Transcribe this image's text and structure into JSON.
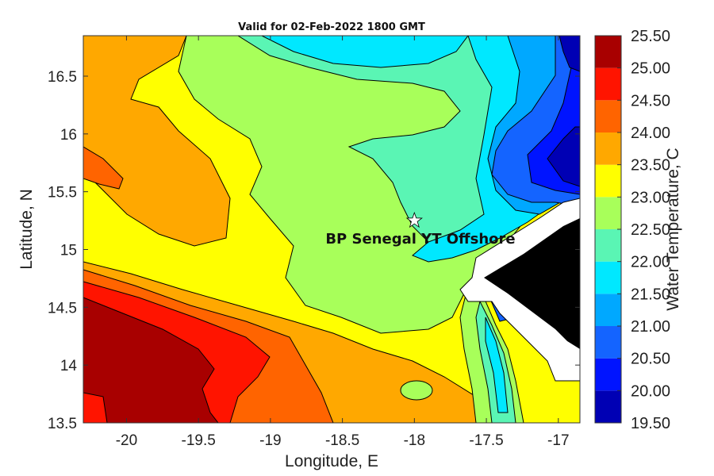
{
  "title": "Valid for 02-Feb-2022 1800 GMT",
  "site_label": "BP Senegal YT Offshore",
  "chart_data": {
    "type": "heatmap",
    "title": "Valid for 02-Feb-2022 1800 GMT",
    "xlabel": "Longitude, E",
    "ylabel": "Latitude, N",
    "colorbar_label": "Water Temperature, C",
    "xlim": [
      -20.3,
      -16.85
    ],
    "ylim": [
      13.5,
      16.85
    ],
    "x_ticks": [
      {
        "value": -20,
        "label": "-20"
      },
      {
        "value": -19.5,
        "label": "-19.5"
      },
      {
        "value": -19,
        "label": "-19"
      },
      {
        "value": -18.5,
        "label": "-18.5"
      },
      {
        "value": -18,
        "label": "-18"
      },
      {
        "value": -17.5,
        "label": "-17.5"
      },
      {
        "value": -17,
        "label": "-17"
      }
    ],
    "y_ticks": [
      {
        "value": 13.5,
        "label": "13.5"
      },
      {
        "value": 14,
        "label": "14"
      },
      {
        "value": 14.5,
        "label": "14.5"
      },
      {
        "value": 15,
        "label": "15"
      },
      {
        "value": 15.5,
        "label": "15.5"
      },
      {
        "value": 16,
        "label": "16"
      },
      {
        "value": 16.5,
        "label": "16.5"
      }
    ],
    "marker": {
      "name": "BP Senegal YT Offshore",
      "lon": -18.0,
      "lat": 15.25,
      "symbol": "star"
    },
    "colorbar": {
      "levels": [
        "19.50",
        "20.00",
        "20.50",
        "21.00",
        "21.50",
        "22.00",
        "22.50",
        "23.00",
        "23.50",
        "24.00",
        "24.50",
        "25.00",
        "25.50"
      ],
      "colors": [
        "#0000b4",
        "#0014ff",
        "#1464ff",
        "#00a8ff",
        "#00e8ff",
        "#5af5b4",
        "#a8ff5a",
        "#ffff00",
        "#ffa800",
        "#ff6400",
        "#ff1400",
        "#a80000"
      ]
    },
    "land_color": "#000000",
    "nodata_color": "#ffffff"
  }
}
